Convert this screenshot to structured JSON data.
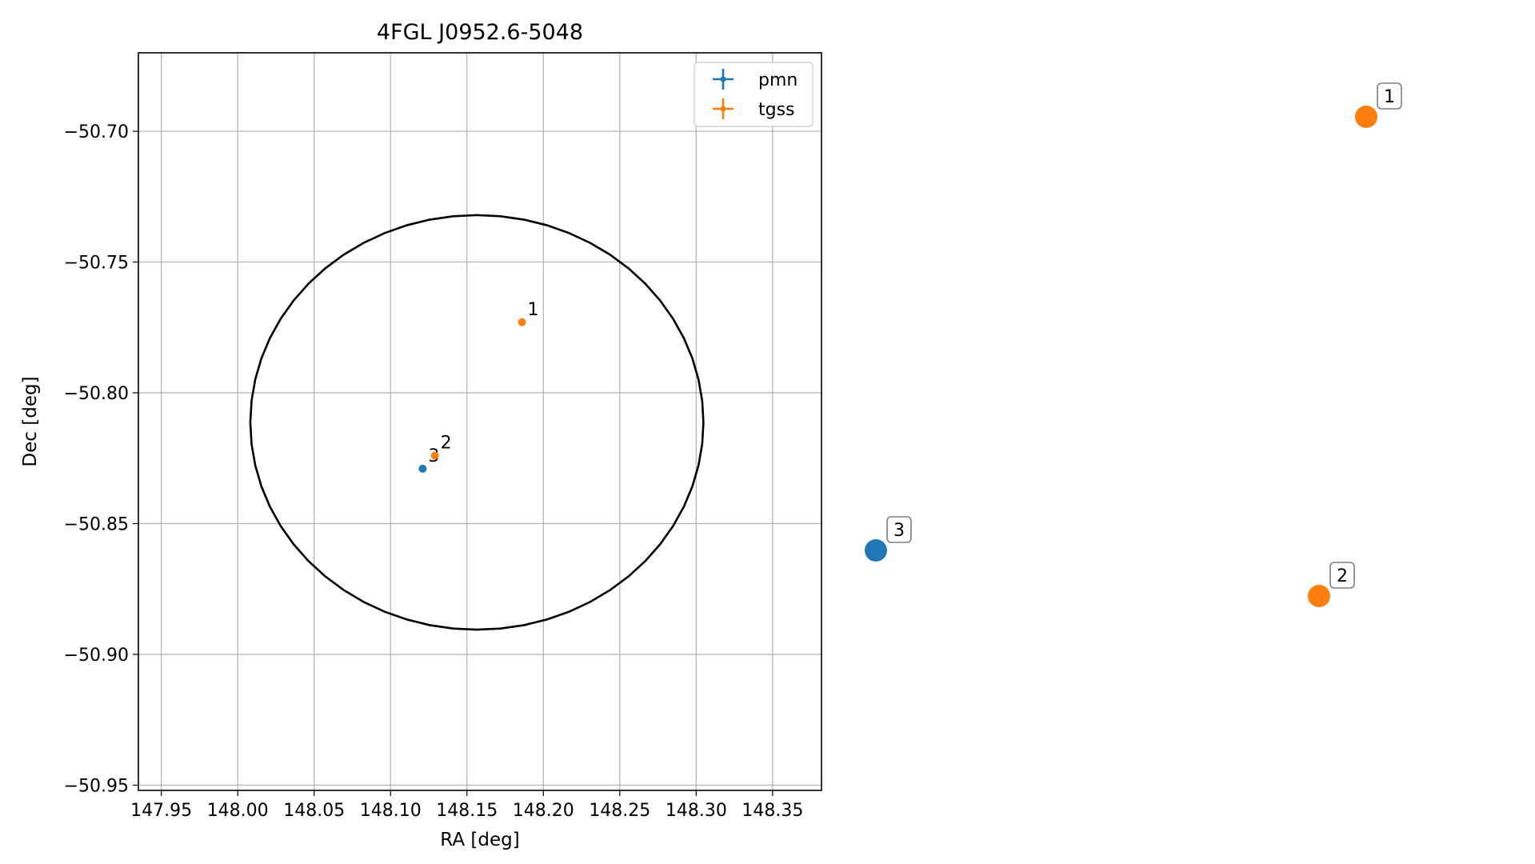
{
  "chart_data": {
    "type": "scatter",
    "title": "4FGL J0952.6-5048",
    "xlabel": "RA [deg]",
    "ylabel": "Dec [deg]",
    "xlim": [
      147.935,
      148.382
    ],
    "ylim": [
      -50.952,
      -50.67
    ],
    "xticks": [
      147.95,
      148.0,
      148.05,
      148.1,
      148.15,
      148.2,
      148.25,
      148.3,
      148.35
    ],
    "xtick_labels": [
      "147.95",
      "148.00",
      "148.05",
      "148.10",
      "148.15",
      "148.20",
      "148.25",
      "148.30",
      "148.35"
    ],
    "yticks": [
      -50.7,
      -50.75,
      -50.8,
      -50.85,
      -50.9,
      -50.95
    ],
    "ytick_labels": [
      "−50.70",
      "−50.75",
      "−50.80",
      "−50.85",
      "−50.90",
      "−50.95"
    ],
    "grid": true,
    "legend_position": "top-right",
    "ellipse": {
      "center": [
        148.1565,
        -50.8113
      ],
      "width_ra": 0.2965,
      "height_dec": 0.1585,
      "color": "#000000"
    },
    "series": [
      {
        "name": "pmn",
        "color": "#1f77b4",
        "points": [
          {
            "label": "3",
            "x": 148.121,
            "y": -50.829
          }
        ]
      },
      {
        "name": "tgss",
        "color": "#ff7f0e",
        "points": [
          {
            "label": "1",
            "x": 148.186,
            "y": -50.773
          },
          {
            "label": "2",
            "x": 148.129,
            "y": -50.824
          }
        ]
      }
    ],
    "side_markers": [
      {
        "label": "1",
        "color": "#ff7f0e"
      },
      {
        "label": "2",
        "color": "#ff7f0e"
      },
      {
        "label": "3",
        "color": "#1f77b4"
      }
    ]
  }
}
